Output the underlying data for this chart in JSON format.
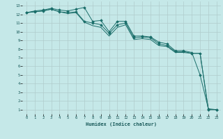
{
  "xlabel": "Humidex (Indice chaleur)",
  "background_color": "#c5e8e8",
  "grid_color": "#b0cccc",
  "line_color": "#1a6e6a",
  "xlim": [
    -0.5,
    23.5
  ],
  "ylim": [
    0.5,
    13.5
  ],
  "xticks": [
    0,
    1,
    2,
    3,
    4,
    5,
    6,
    7,
    8,
    9,
    10,
    11,
    12,
    13,
    14,
    15,
    16,
    17,
    18,
    19,
    20,
    21,
    22,
    23
  ],
  "yticks": [
    1,
    2,
    3,
    4,
    5,
    6,
    7,
    8,
    9,
    10,
    11,
    12,
    13
  ],
  "series": [
    {
      "x": [
        0,
        1,
        2,
        3,
        4,
        5,
        6,
        7,
        8,
        9,
        10,
        11,
        12,
        13,
        14,
        15,
        16,
        17,
        18,
        19,
        20,
        21,
        22,
        23
      ],
      "y": [
        12.2,
        12.4,
        12.5,
        12.7,
        12.5,
        12.4,
        12.6,
        12.8,
        11.2,
        11.3,
        10.0,
        11.2,
        11.2,
        9.5,
        9.5,
        9.4,
        8.8,
        8.6,
        7.8,
        7.8,
        7.6,
        5.0,
        1.1,
        1.0
      ],
      "marker": "D",
      "markersize": 1.8
    },
    {
      "x": [
        0,
        1,
        2,
        3,
        4,
        5,
        6,
        7,
        8,
        9,
        10,
        11,
        12,
        13,
        14,
        15,
        16,
        17,
        18,
        19,
        20,
        21,
        22,
        23
      ],
      "y": [
        12.2,
        12.3,
        12.4,
        12.6,
        12.3,
        12.2,
        12.3,
        11.2,
        11.0,
        10.8,
        9.8,
        10.8,
        11.0,
        9.3,
        9.4,
        9.3,
        8.6,
        8.4,
        7.7,
        7.7,
        7.5,
        7.5,
        1.0,
        1.0
      ],
      "marker": "D",
      "markersize": 1.8
    },
    {
      "x": [
        0,
        1,
        2,
        3,
        4,
        5,
        6,
        7,
        8,
        9,
        10,
        11,
        12,
        13,
        14,
        15,
        16,
        17,
        18,
        19,
        20,
        21,
        22,
        23
      ],
      "y": [
        12.2,
        12.3,
        12.4,
        12.6,
        12.3,
        12.1,
        12.2,
        11.1,
        10.7,
        10.5,
        9.5,
        10.5,
        10.8,
        9.1,
        9.2,
        9.1,
        8.4,
        8.3,
        7.6,
        7.6,
        7.5,
        7.5,
        1.0,
        1.0
      ],
      "marker": null,
      "markersize": 0
    }
  ]
}
